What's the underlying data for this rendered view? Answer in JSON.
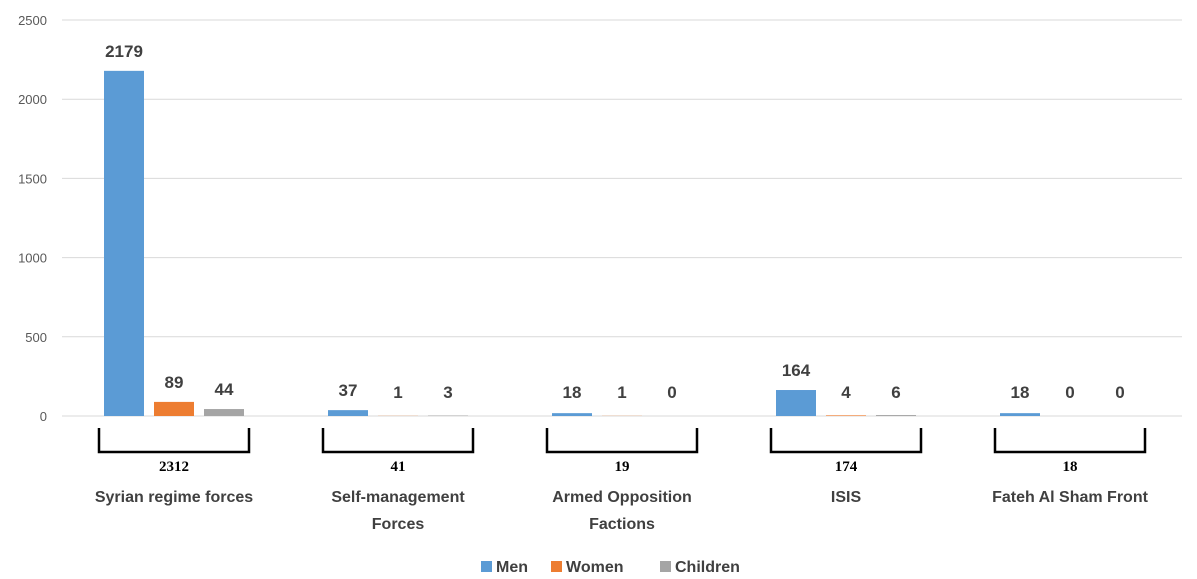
{
  "chart_data": {
    "type": "bar",
    "title": "",
    "xlabel": "",
    "ylabel": "",
    "ylim": [
      0,
      2500
    ],
    "yticks": [
      0,
      500,
      1000,
      1500,
      2000,
      2500
    ],
    "grid": true,
    "legend_position": "bottom",
    "categories": [
      [
        "Syrian regime forces"
      ],
      [
        "Self-management",
        "Forces"
      ],
      [
        "Armed Opposition",
        "Factions"
      ],
      [
        "ISIS"
      ],
      [
        "Fateh Al Sham Front"
      ]
    ],
    "totals": [
      "2312",
      "41",
      "19",
      "174",
      "18"
    ],
    "series": [
      {
        "name": "Men",
        "color": "#5b9bd5",
        "values": [
          2179,
          37,
          18,
          164,
          18
        ]
      },
      {
        "name": "Women",
        "color": "#ed7d31",
        "values": [
          89,
          1,
          1,
          4,
          0
        ]
      },
      {
        "name": "Children",
        "color": "#a5a5a5",
        "values": [
          44,
          3,
          0,
          6,
          0
        ]
      }
    ]
  }
}
